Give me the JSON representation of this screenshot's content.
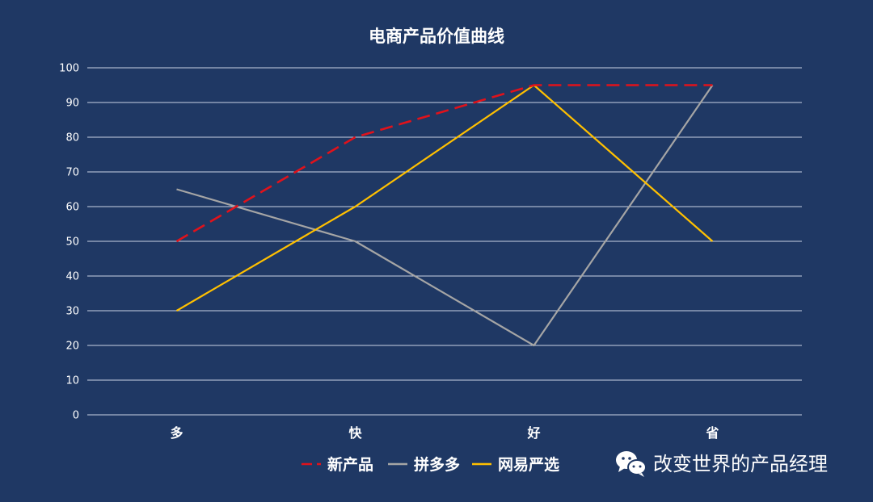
{
  "chart_data": {
    "type": "line",
    "title": "电商产品价值曲线",
    "categories": [
      "多",
      "快",
      "好",
      "省"
    ],
    "ylim": [
      0,
      100
    ],
    "yticks": [
      0,
      10,
      20,
      30,
      40,
      50,
      60,
      70,
      80,
      90,
      100
    ],
    "grid": true,
    "legend_position": "bottom",
    "series": [
      {
        "name": "新产品",
        "values": [
          50,
          80,
          95,
          95
        ],
        "color": "#e0121b",
        "dash": "dashed"
      },
      {
        "name": "拼多多",
        "values": [
          65,
          50,
          20,
          95
        ],
        "color": "#a5a5a5",
        "dash": "solid"
      },
      {
        "name": "网易严选",
        "values": [
          30,
          60,
          95,
          50
        ],
        "color": "#ffc000",
        "dash": "solid"
      }
    ]
  },
  "watermark": {
    "icon": "wechat-icon",
    "text": "改变世界的产品经理"
  }
}
